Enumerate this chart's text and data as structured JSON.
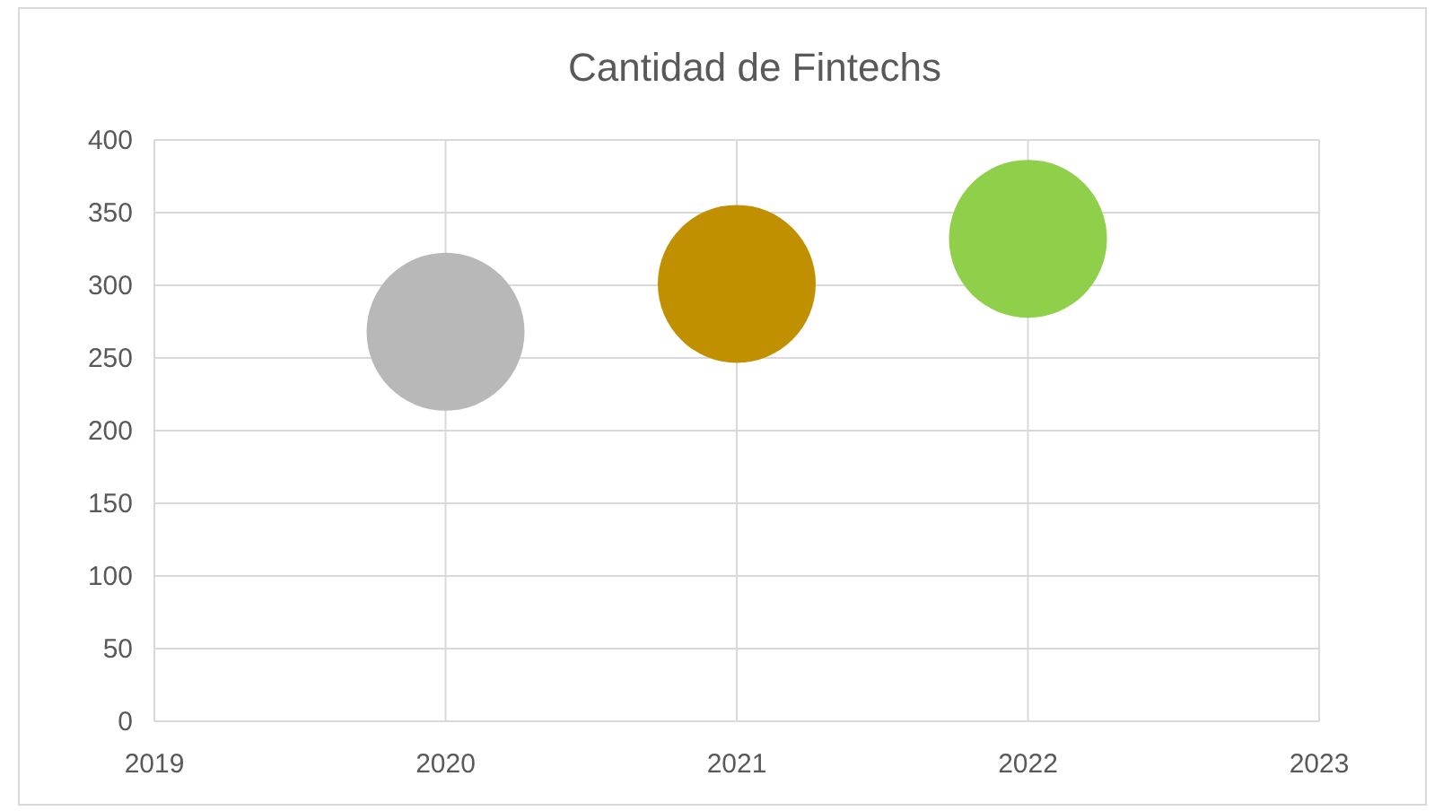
{
  "chart_data": {
    "type": "bubble",
    "title": "Cantidad de Fintechs",
    "x": [
      2020,
      2021,
      2022
    ],
    "values": [
      268,
      301,
      332
    ],
    "sizes": [
      1,
      1,
      1
    ],
    "colors": [
      "#b8b8b8",
      "#c09000",
      "#8fcf4a"
    ],
    "xlim": [
      2019,
      2023
    ],
    "xticks": [
      2019,
      2020,
      2021,
      2022,
      2023
    ],
    "ylim": [
      0,
      400
    ],
    "yticks": [
      0,
      50,
      100,
      150,
      200,
      250,
      300,
      350,
      400
    ],
    "grid": true
  }
}
